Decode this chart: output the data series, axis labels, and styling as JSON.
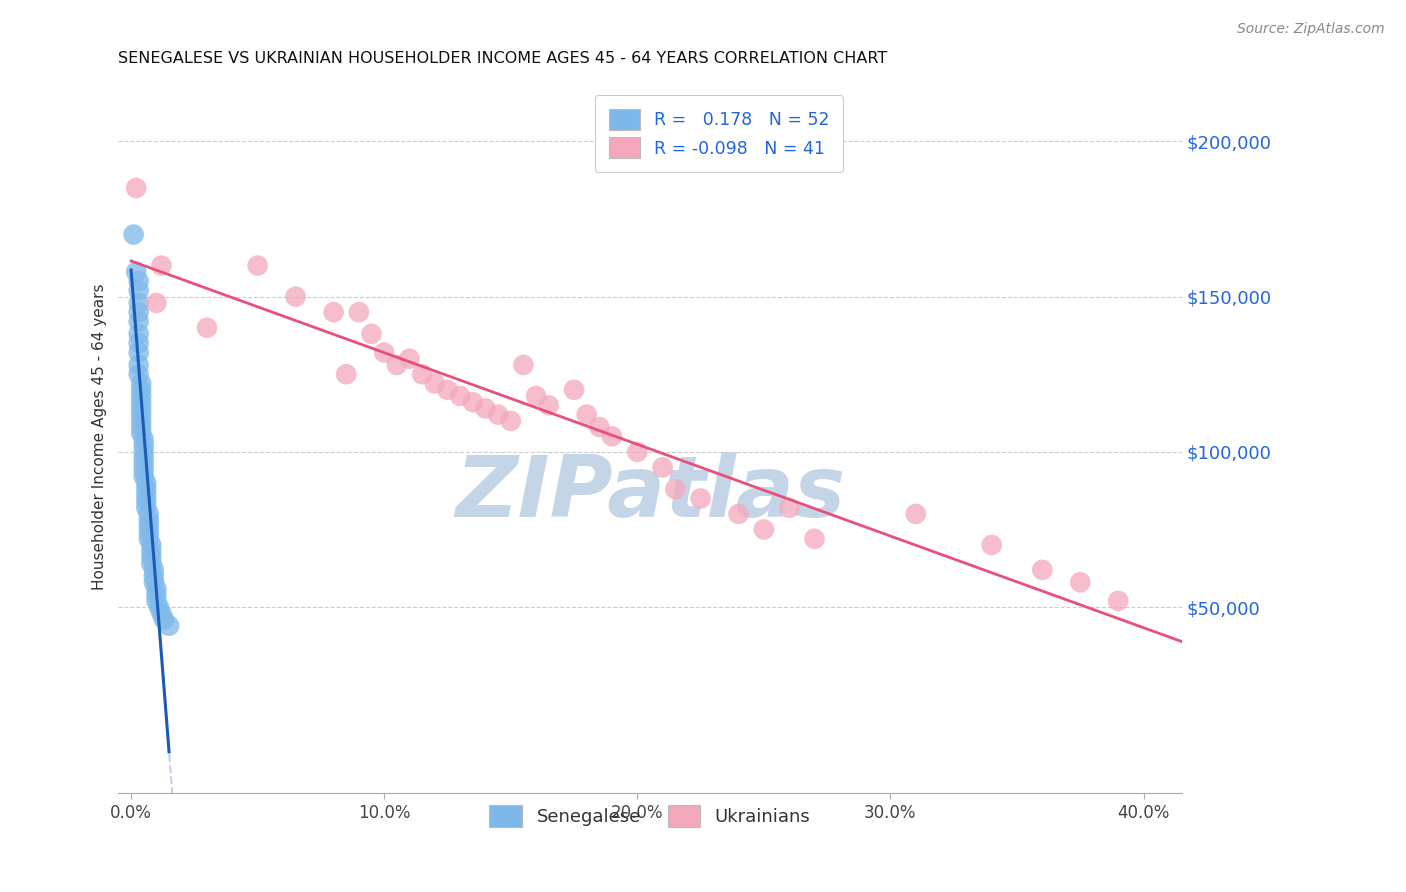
{
  "title": "SENEGALESE VS UKRAINIAN HOUSEHOLDER INCOME AGES 45 - 64 YEARS CORRELATION CHART",
  "source": "Source: ZipAtlas.com",
  "ylabel": "Householder Income Ages 45 - 64 years",
  "xlabel_ticks": [
    "0.0%",
    "10.0%",
    "20.0%",
    "30.0%",
    "40.0%"
  ],
  "xlabel_vals": [
    0.0,
    0.1,
    0.2,
    0.3,
    0.4
  ],
  "ylabel_ticks": [
    "$50,000",
    "$100,000",
    "$150,000",
    "$200,000"
  ],
  "ylabel_vals": [
    50000,
    100000,
    150000,
    200000
  ],
  "xlim": [
    -0.005,
    0.415
  ],
  "ylim": [
    -10000,
    220000
  ],
  "color_senegalese": "#7EB8EA",
  "color_ukrainian": "#F4A8BC",
  "line_color_senegalese": "#1A5BB5",
  "line_color_ukrainian": "#E8507A",
  "dash_color": "#BBCCDD",
  "watermark": "ZIPatlas",
  "watermark_color": "#C5D5E8",
  "background_color": "#FFFFFF",
  "senegalese_x": [
    0.001,
    0.002,
    0.003,
    0.003,
    0.003,
    0.003,
    0.003,
    0.003,
    0.003,
    0.003,
    0.003,
    0.003,
    0.004,
    0.004,
    0.004,
    0.004,
    0.004,
    0.004,
    0.004,
    0.004,
    0.004,
    0.005,
    0.005,
    0.005,
    0.005,
    0.005,
    0.005,
    0.005,
    0.006,
    0.006,
    0.006,
    0.006,
    0.006,
    0.007,
    0.007,
    0.007,
    0.007,
    0.007,
    0.008,
    0.008,
    0.008,
    0.008,
    0.009,
    0.009,
    0.009,
    0.01,
    0.01,
    0.01,
    0.011,
    0.012,
    0.013,
    0.015
  ],
  "senegalese_y": [
    170000,
    158000,
    155000,
    152000,
    148000,
    145000,
    142000,
    138000,
    135000,
    132000,
    128000,
    125000,
    122000,
    120000,
    118000,
    116000,
    114000,
    112000,
    110000,
    108000,
    106000,
    104000,
    102000,
    100000,
    98000,
    96000,
    94000,
    92000,
    90000,
    88000,
    86000,
    84000,
    82000,
    80000,
    78000,
    76000,
    74000,
    72000,
    70000,
    68000,
    66000,
    64000,
    62000,
    60000,
    58000,
    56000,
    54000,
    52000,
    50000,
    48000,
    46000,
    44000
  ],
  "ukrainian_x": [
    0.002,
    0.01,
    0.012,
    0.03,
    0.05,
    0.065,
    0.08,
    0.085,
    0.09,
    0.095,
    0.1,
    0.105,
    0.11,
    0.115,
    0.12,
    0.125,
    0.13,
    0.135,
    0.14,
    0.145,
    0.15,
    0.155,
    0.16,
    0.165,
    0.175,
    0.18,
    0.185,
    0.19,
    0.2,
    0.21,
    0.215,
    0.225,
    0.24,
    0.25,
    0.26,
    0.27,
    0.31,
    0.34,
    0.36,
    0.375,
    0.39
  ],
  "ukrainian_y": [
    185000,
    148000,
    160000,
    140000,
    160000,
    150000,
    145000,
    125000,
    145000,
    138000,
    132000,
    128000,
    130000,
    125000,
    122000,
    120000,
    118000,
    116000,
    114000,
    112000,
    110000,
    128000,
    118000,
    115000,
    120000,
    112000,
    108000,
    105000,
    100000,
    95000,
    88000,
    85000,
    80000,
    75000,
    82000,
    72000,
    80000,
    70000,
    62000,
    58000,
    52000
  ]
}
